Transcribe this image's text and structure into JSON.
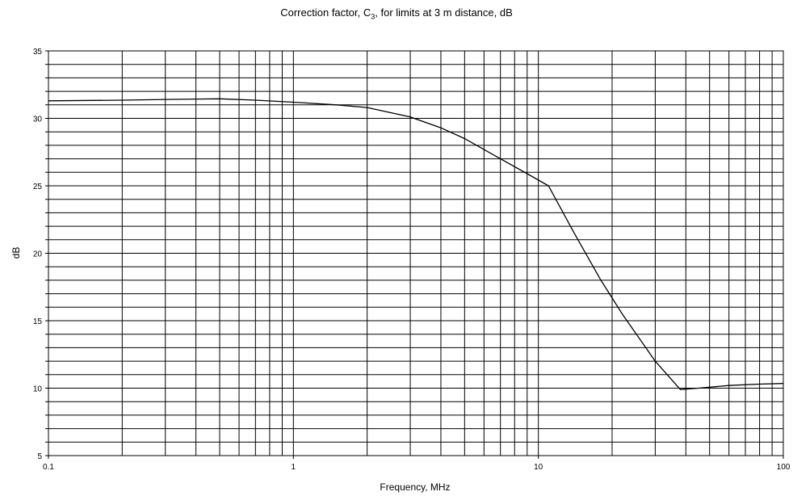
{
  "chart_data": {
    "type": "line",
    "title_prefix": "Correction factor, C",
    "title_subscript": "3",
    "title_suffix": ", for limits at 3 m distance, dB",
    "xlabel": "Frequency, MHz",
    "ylabel": "dB",
    "x_scale": "log",
    "xlim": [
      0.1,
      100
    ],
    "ylim": [
      5,
      35
    ],
    "x_ticks": [
      0.1,
      1,
      10,
      100
    ],
    "x_tick_labels": [
      "0.1",
      "1",
      "10",
      "100"
    ],
    "y_ticks": [
      5,
      10,
      15,
      20,
      25,
      30,
      35
    ],
    "y_tick_labels": [
      "5",
      "10",
      "15",
      "20",
      "25",
      "30",
      "35"
    ],
    "y_minor_step": 1,
    "grid": true,
    "series": [
      {
        "x": [
          0.1,
          0.2,
          0.3,
          0.5,
          0.7,
          1,
          1.5,
          2,
          3,
          4,
          5,
          7,
          9,
          11,
          14,
          18,
          22,
          30,
          38,
          45,
          60,
          80,
          100
        ],
        "y": [
          31.3,
          31.35,
          31.4,
          31.45,
          31.35,
          31.2,
          31.0,
          30.8,
          30.1,
          29.3,
          28.5,
          27.0,
          25.9,
          25.0,
          21.5,
          18.0,
          15.5,
          12.0,
          9.9,
          10.0,
          10.2,
          10.3,
          10.35
        ]
      }
    ]
  }
}
